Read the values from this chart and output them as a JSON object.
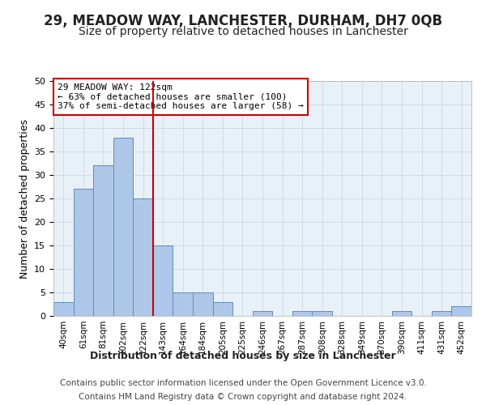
{
  "title": "29, MEADOW WAY, LANCHESTER, DURHAM, DH7 0QB",
  "subtitle": "Size of property relative to detached houses in Lanchester",
  "xlabel": "Distribution of detached houses by size in Lanchester",
  "ylabel": "Number of detached properties",
  "bar_labels": [
    "40sqm",
    "61sqm",
    "81sqm",
    "102sqm",
    "122sqm",
    "143sqm",
    "164sqm",
    "184sqm",
    "205sqm",
    "225sqm",
    "246sqm",
    "267sqm",
    "287sqm",
    "308sqm",
    "328sqm",
    "349sqm",
    "370sqm",
    "390sqm",
    "411sqm",
    "431sqm",
    "452sqm"
  ],
  "bar_values": [
    3,
    27,
    32,
    38,
    25,
    15,
    5,
    5,
    3,
    0,
    1,
    0,
    1,
    1,
    0,
    0,
    0,
    1,
    0,
    1,
    2
  ],
  "bar_color": "#aec6e8",
  "bar_edge_color": "#5a8fc2",
  "vline_color": "#cc0000",
  "vline_index": 4,
  "annotation_text": "29 MEADOW WAY: 122sqm\n← 63% of detached houses are smaller (100)\n37% of semi-detached houses are larger (58) →",
  "annotation_box_color": "#ffffff",
  "annotation_box_edge_color": "#cc0000",
  "ylim": [
    0,
    50
  ],
  "yticks": [
    0,
    5,
    10,
    15,
    20,
    25,
    30,
    35,
    40,
    45,
    50
  ],
  "background_color": "#ffffff",
  "plot_bg_color": "#e8f0f8",
  "grid_color": "#c8d4e0",
  "footer_line1": "Contains HM Land Registry data © Crown copyright and database right 2024.",
  "footer_line2": "Contains public sector information licensed under the Open Government Licence v3.0.",
  "title_fontsize": 12,
  "subtitle_fontsize": 10,
  "ylabel_fontsize": 9,
  "xlabel_fontsize": 9,
  "tick_fontsize": 7.5,
  "ytick_fontsize": 8,
  "annotation_fontsize": 8,
  "footer_fontsize": 7.5
}
